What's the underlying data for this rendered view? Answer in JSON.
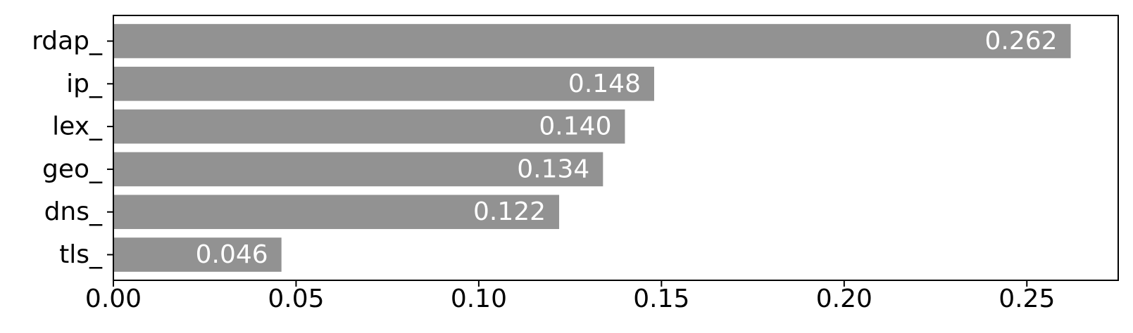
{
  "chart_data": {
    "type": "bar",
    "orientation": "horizontal",
    "categories": [
      "rdap_",
      "ip_",
      "lex_",
      "geo_",
      "dns_",
      "tls_"
    ],
    "values": [
      0.262,
      0.148,
      0.14,
      0.134,
      0.122,
      0.046
    ],
    "value_labels": [
      "0.262",
      "0.148",
      "0.140",
      "0.134",
      "0.122",
      "0.046"
    ],
    "xlim": [
      0,
      0.275
    ],
    "xticks": [
      0.0,
      0.05,
      0.1,
      0.15,
      0.2,
      0.25
    ],
    "xtick_labels": [
      "0.00",
      "0.05",
      "0.10",
      "0.15",
      "0.20",
      "0.25"
    ],
    "title": "",
    "xlabel": "",
    "ylabel": "",
    "grid": false,
    "colors": {
      "bar": "#929292",
      "data_label": "#ffffff",
      "axis": "#000000"
    }
  }
}
